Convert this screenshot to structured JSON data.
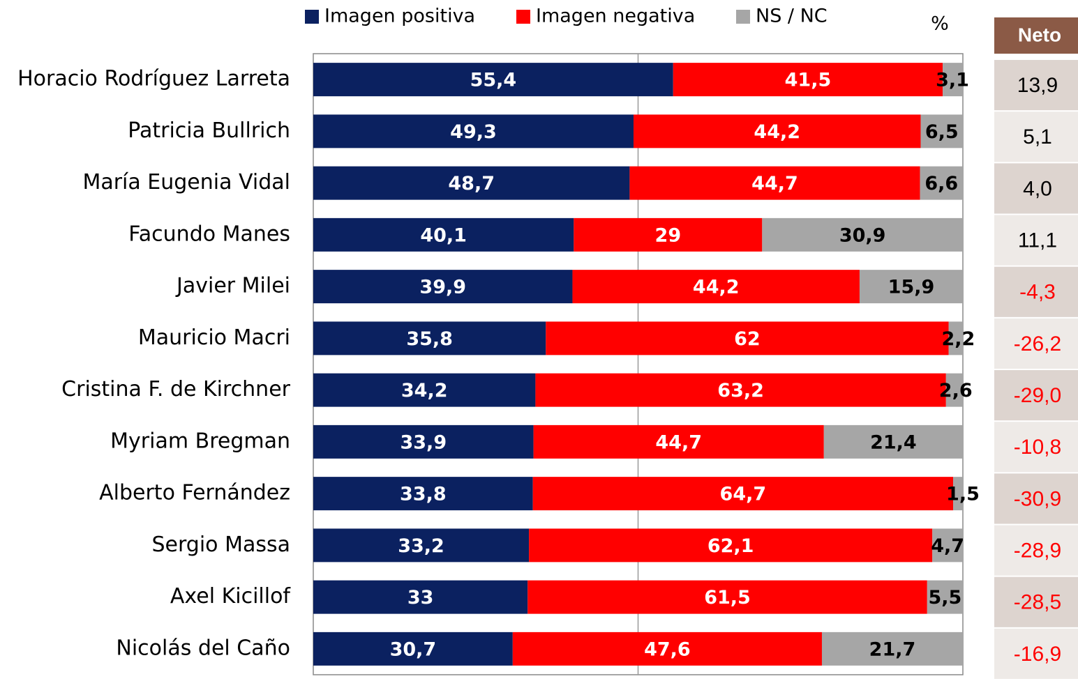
{
  "chart_data": {
    "type": "stacked_bar_horizontal",
    "unit_label": "%",
    "categories": [
      "Horacio Rodríguez Larreta",
      "Patricia Bullrich",
      "María Eugenia Vidal",
      "Facundo Manes",
      "Javier Milei",
      "Mauricio Macri",
      "Cristina F. de Kirchner",
      "Myriam Bregman",
      "Alberto Fernández",
      "Sergio Massa",
      "Axel Kicillof",
      "Nicolás del Caño"
    ],
    "series": [
      {
        "name": "Imagen positiva",
        "color": "#0b2160",
        "values": [
          55.4,
          49.3,
          48.7,
          40.1,
          39.9,
          35.8,
          34.2,
          33.9,
          33.8,
          33.2,
          33,
          30.7
        ],
        "value_labels": [
          "55,4",
          "49,3",
          "48,7",
          "40,1",
          "39,9",
          "35,8",
          "34,2",
          "33,9",
          "33,8",
          "33,2",
          "33",
          "30,7"
        ]
      },
      {
        "name": "Imagen negativa",
        "color": "#ff0000",
        "values": [
          41.5,
          44.2,
          44.7,
          29,
          44.2,
          62,
          63.2,
          44.7,
          64.7,
          62.1,
          61.5,
          47.6
        ],
        "value_labels": [
          "41,5",
          "44,2",
          "44,7",
          "29",
          "44,2",
          "62",
          "63,2",
          "44,7",
          "64,7",
          "62,1",
          "61,5",
          "47,6"
        ]
      },
      {
        "name": "NS / NC",
        "color": "#a6a6a6",
        "values": [
          3.1,
          6.5,
          6.6,
          30.9,
          15.9,
          2.2,
          2.6,
          21.4,
          1.5,
          4.7,
          5.5,
          21.7
        ],
        "value_labels": [
          "3,1",
          "6,5",
          "6,6",
          "30,9",
          "15,9",
          "2,2",
          "2,6",
          "21,4",
          "1,5",
          "4,7",
          "5,5",
          "21,7"
        ]
      }
    ],
    "xlim": [
      0,
      100
    ],
    "neto": {
      "title": "Neto",
      "values": [
        13.9,
        5.1,
        4.0,
        11.1,
        -4.3,
        -26.2,
        -29.0,
        -10.8,
        -30.9,
        -28.9,
        -28.5,
        -16.9
      ],
      "value_labels": [
        "13,9",
        "5,1",
        "4,0",
        "11,1",
        "-4,3",
        "-26,2",
        "-29,0",
        "-10,8",
        "-30,9",
        "-28,9",
        "-28,5",
        "-16,9"
      ]
    }
  }
}
